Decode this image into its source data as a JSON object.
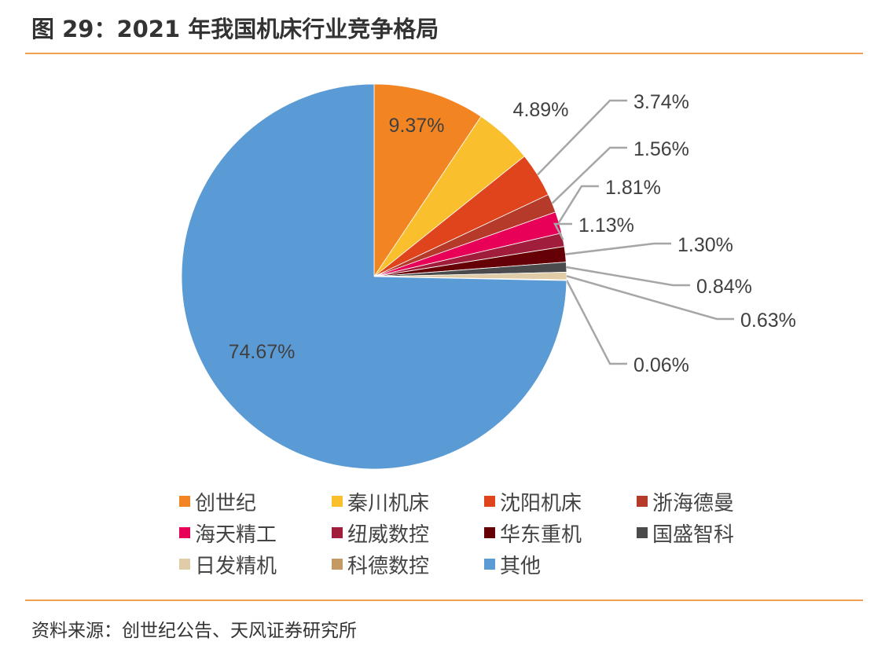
{
  "title": "图 29：2021 年我国机床行业竞争格局",
  "source": "资料来源：创世纪公告、天风证券研究所",
  "chart_data": {
    "type": "pie",
    "start": "12 o'clock, clockwise",
    "legend_position": "bottom",
    "slices": [
      {
        "name": "创世纪",
        "value": 9.37,
        "label": "9.37%",
        "color": "#F28522"
      },
      {
        "name": "秦川机床",
        "value": 4.89,
        "label": "4.89%",
        "color": "#F9BF2C"
      },
      {
        "name": "沈阳机床",
        "value": 3.74,
        "label": "3.74%",
        "color": "#E0441C"
      },
      {
        "name": "浙海德曼",
        "value": 1.56,
        "label": "1.56%",
        "color": "#B53A2A"
      },
      {
        "name": "海天精工",
        "value": 1.81,
        "label": "1.81%",
        "color": "#E80058"
      },
      {
        "name": "纽威数控",
        "value": 1.13,
        "label": "1.13%",
        "color": "#A01E3C"
      },
      {
        "name": "华东重机",
        "value": 1.3,
        "label": "1.30%",
        "color": "#650006"
      },
      {
        "name": "国盛智科",
        "value": 0.84,
        "label": "0.84%",
        "color": "#4B4B4D"
      },
      {
        "name": "日发精机",
        "value": 0.63,
        "label": "0.63%",
        "color": "#E0CCA6"
      },
      {
        "name": "科德数控",
        "value": 0.06,
        "label": "0.06%",
        "color": "#C49A62"
      },
      {
        "name": "其他",
        "value": 74.67,
        "label": "74.67%",
        "color": "#5B9BD5"
      }
    ]
  }
}
